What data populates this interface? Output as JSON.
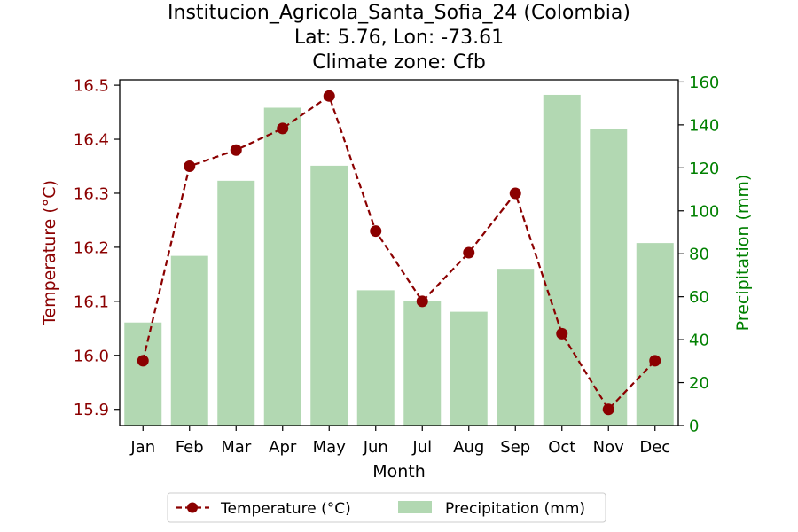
{
  "chart_data": {
    "type": "bar",
    "title_lines": [
      "Institucion_Agricola_Santa_Sofia_24 (Colombia)",
      "Lat: 5.76, Lon: -73.61",
      "Climate zone: Cfb"
    ],
    "xlabel": "Month",
    "ylabel_left": "Temperature (°C)",
    "ylabel_right": "Precipitation (mm)",
    "categories": [
      "Jan",
      "Feb",
      "Mar",
      "Apr",
      "May",
      "Jun",
      "Jul",
      "Aug",
      "Sep",
      "Oct",
      "Nov",
      "Dec"
    ],
    "series": [
      {
        "name": "Temperature (°C)",
        "type": "line",
        "axis": "left",
        "color": "#8b0000",
        "values": [
          15.99,
          16.35,
          16.38,
          16.42,
          16.48,
          16.23,
          16.1,
          16.19,
          16.3,
          16.04,
          15.9,
          15.99
        ]
      },
      {
        "name": "Precipitation (mm)",
        "type": "bar",
        "axis": "right",
        "color": "#b2d8b2",
        "values": [
          48,
          79,
          114,
          148,
          121,
          63,
          58,
          53,
          73,
          154,
          138,
          85
        ]
      }
    ],
    "ylim_left": [
      15.87,
      16.51
    ],
    "yticks_left": [
      "15.9",
      "16.0",
      "16.1",
      "16.2",
      "16.3",
      "16.4",
      "16.5"
    ],
    "ylim_right": [
      0,
      161
    ],
    "yticks_right": [
      "0",
      "20",
      "40",
      "60",
      "80",
      "100",
      "120",
      "140",
      "160"
    ],
    "left_axis_color": "#8b0000",
    "right_axis_color": "#008000",
    "grid": false,
    "legend_position": "bottom-center"
  }
}
